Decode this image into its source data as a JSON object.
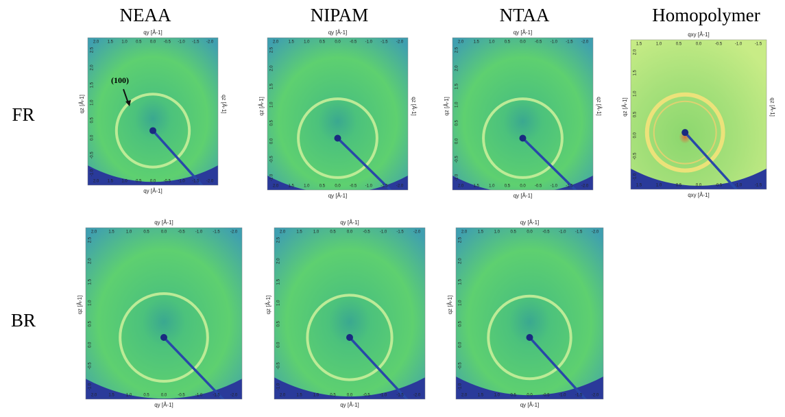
{
  "columns": [
    "NEAA",
    "NIPAM",
    "NTAA",
    "Homopolymer"
  ],
  "rows": [
    "FR",
    "BR"
  ],
  "annotation": "(100)",
  "panels": [
    {
      "top_label": "qy [Å-1]",
      "bottom_label": "qy [Å-1]",
      "left_label": "qz [Å-1]",
      "right_label": "qz [Å-1]",
      "xticks": [
        "2.0",
        "1.5",
        "1.0",
        "0.5",
        "0.0",
        "-0.5",
        "-1.0",
        "-1.5",
        "-2.0"
      ],
      "yticks": [
        "-1.0",
        "-0.5",
        "0.0",
        "0.5",
        "1.0",
        "1.5",
        "2.0",
        "2.5"
      ]
    },
    {
      "top_label": "qy [Å-1]",
      "bottom_label": "qy [Å-1]",
      "left_label": "qz [Å-1]",
      "right_label": "qz [Å-1]",
      "xticks": [
        "2.0",
        "1.5",
        "1.0",
        "0.5",
        "0.0",
        "-0.5",
        "-1.0",
        "-1.5",
        "-2.0"
      ],
      "yticks": [
        "-1.0",
        "-0.5",
        "0.0",
        "0.5",
        "1.0",
        "1.5",
        "2.0",
        "2.5"
      ]
    },
    {
      "top_label": "qy [Å-1]",
      "bottom_label": "qy [Å-1]",
      "left_label": "qz [Å-1]",
      "right_label": "qz [Å-1]",
      "xticks": [
        "2.0",
        "1.5",
        "1.0",
        "0.5",
        "0.0",
        "-0.5",
        "-1.0",
        "-1.5",
        "-2.0"
      ],
      "yticks": [
        "-1.0",
        "-0.5",
        "0.0",
        "0.5",
        "1.0",
        "1.5",
        "2.0",
        "2.5"
      ]
    },
    {
      "top_label": "qxy [Å-1]",
      "bottom_label": "qxy [Å-1]",
      "left_label": "qz [Å-1]",
      "right_label": "qz [Å-1]",
      "xticks": [
        "1.5",
        "1.0",
        "0.5",
        "0.0",
        "-0.5",
        "-1.0",
        "-1.5"
      ],
      "yticks": [
        "-1.0",
        "-0.5",
        "0.0",
        "0.5",
        "1.0",
        "1.5",
        "2.0"
      ]
    },
    {
      "top_label": "qy [Å-1]",
      "bottom_label": "qy [Å-1]",
      "left_label": "qz [Å-1]",
      "xticks": [
        "2.0",
        "1.5",
        "1.0",
        "0.5",
        "0.0",
        "-0.5",
        "-1.0",
        "-1.5",
        "-2.0"
      ],
      "yticks": [
        "-1.0",
        "-0.5",
        "0.0",
        "0.5",
        "1.0",
        "1.5",
        "2.0",
        "2.5"
      ]
    },
    {
      "top_label": "qy [Å-1]",
      "bottom_label": "qy [Å-1]",
      "left_label": "qz [Å-1]",
      "xticks": [
        "2.0",
        "1.5",
        "1.0",
        "0.5",
        "0.0",
        "-0.5",
        "-1.0",
        "-1.5",
        "-2.0"
      ],
      "yticks": [
        "-1.0",
        "-0.5",
        "0.0",
        "0.5",
        "1.0",
        "1.5",
        "2.0",
        "2.5"
      ]
    },
    {
      "top_label": "qy [Å-1]",
      "bottom_label": "qy [Å-1]",
      "left_label": "qz [Å-1]",
      "xticks": [
        "2.0",
        "1.5",
        "1.0",
        "0.5",
        "0.0",
        "-0.5",
        "-1.0",
        "-1.5",
        "-2.0"
      ],
      "yticks": [
        "-1.0",
        "-0.5",
        "0.0",
        "0.5",
        "1.0",
        "1.5",
        "2.0",
        "2.5"
      ]
    }
  ]
}
